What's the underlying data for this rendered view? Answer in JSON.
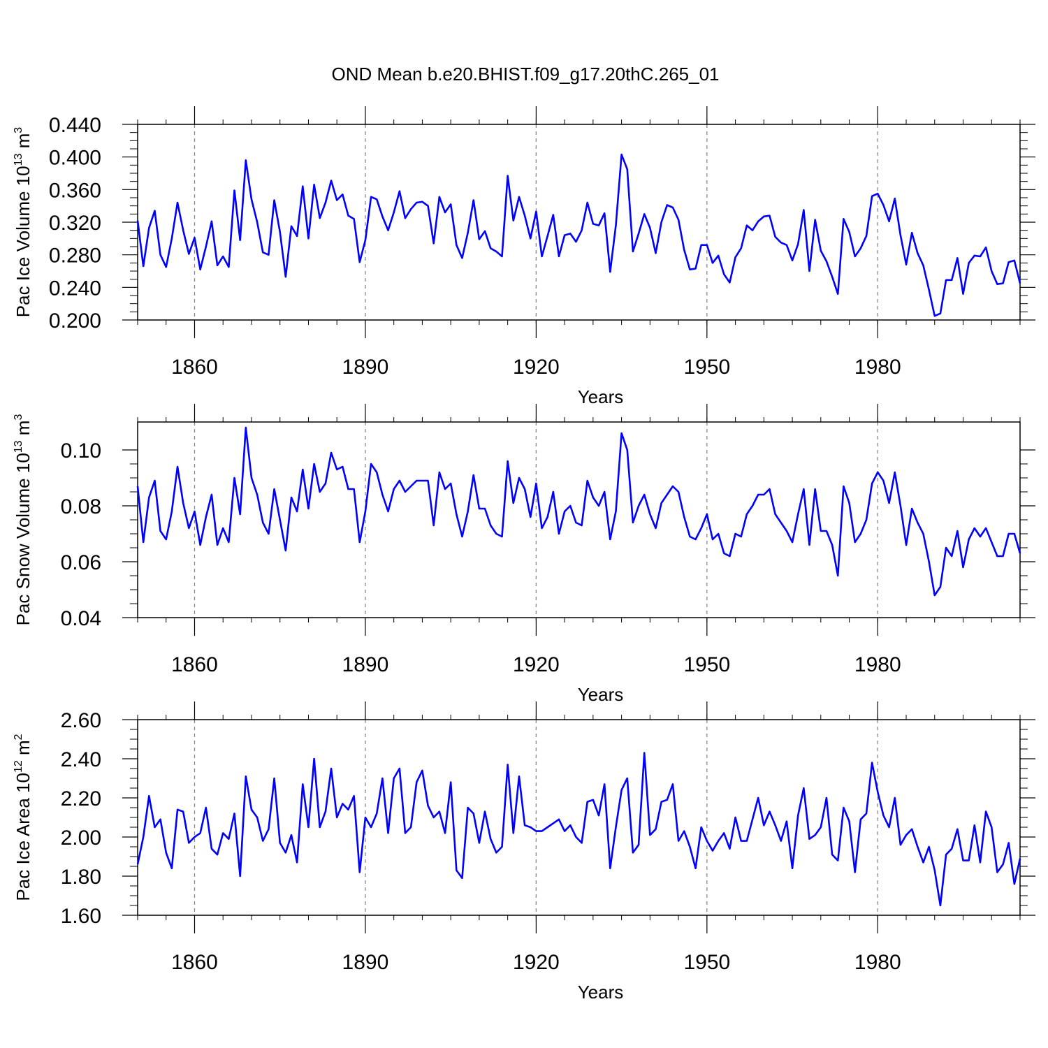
{
  "title": "OND Mean b.e20.BHIST.f09_g17.20thC.265_01",
  "chart_data": [
    {
      "type": "line",
      "name": "pac-ice-volume",
      "title": "OND Mean b.e20.BHIST.f09_g17.20thC.265_01",
      "xlabel": "Years",
      "ylabel": "Pac Ice Volume 10",
      "ylabel_exp": "13",
      "ylabel_unit": " m",
      "ylabel_unit_exp": "3",
      "xlim": [
        1850,
        2005
      ],
      "ylim": [
        0.2,
        0.44
      ],
      "xticks": [
        1860,
        1890,
        1920,
        1950,
        1980
      ],
      "yticks": [
        0.2,
        0.24,
        0.28,
        0.32,
        0.36,
        0.4,
        0.44
      ],
      "ytick_labels": [
        "0.200",
        "0.240",
        "0.280",
        "0.320",
        "0.360",
        "0.400",
        "0.440"
      ],
      "line_color": "#0000ff",
      "x_start": 1850,
      "values": [
        0.322,
        0.266,
        0.313,
        0.334,
        0.28,
        0.265,
        0.3,
        0.344,
        0.31,
        0.281,
        0.301,
        0.262,
        0.29,
        0.321,
        0.267,
        0.278,
        0.265,
        0.359,
        0.298,
        0.396,
        0.348,
        0.32,
        0.283,
        0.28,
        0.347,
        0.308,
        0.253,
        0.315,
        0.303,
        0.364,
        0.3,
        0.366,
        0.325,
        0.344,
        0.371,
        0.347,
        0.354,
        0.328,
        0.324,
        0.271,
        0.298,
        0.351,
        0.348,
        0.327,
        0.31,
        0.332,
        0.358,
        0.325,
        0.336,
        0.344,
        0.345,
        0.34,
        0.294,
        0.351,
        0.332,
        0.342,
        0.292,
        0.276,
        0.307,
        0.347,
        0.299,
        0.309,
        0.288,
        0.284,
        0.278,
        0.377,
        0.322,
        0.351,
        0.328,
        0.3,
        0.333,
        0.278,
        0.303,
        0.329,
        0.278,
        0.304,
        0.306,
        0.296,
        0.31,
        0.344,
        0.318,
        0.316,
        0.331,
        0.259,
        0.316,
        0.403,
        0.385,
        0.284,
        0.306,
        0.33,
        0.313,
        0.282,
        0.32,
        0.341,
        0.338,
        0.323,
        0.286,
        0.262,
        0.263,
        0.292,
        0.292,
        0.27,
        0.279,
        0.256,
        0.246,
        0.277,
        0.288,
        0.316,
        0.31,
        0.321,
        0.327,
        0.328,
        0.302,
        0.295,
        0.292,
        0.273,
        0.293,
        0.335,
        0.26,
        0.323,
        0.285,
        0.272,
        0.253,
        0.232,
        0.324,
        0.308,
        0.278,
        0.288,
        0.303,
        0.352,
        0.355,
        0.341,
        0.321,
        0.349,
        0.304,
        0.268,
        0.307,
        0.282,
        0.267,
        0.237,
        0.205,
        0.208,
        0.249,
        0.249,
        0.276,
        0.232,
        0.27,
        0.279,
        0.278,
        0.289,
        0.26,
        0.244,
        0.245,
        0.271,
        0.273,
        0.245
      ]
    },
    {
      "type": "line",
      "name": "pac-snow-volume",
      "xlabel": "Years",
      "ylabel": "Pac Snow Volume 10",
      "ylabel_exp": "13",
      "ylabel_unit": " m",
      "ylabel_unit_exp": "3",
      "xlim": [
        1850,
        2005
      ],
      "ylim": [
        0.04,
        0.11
      ],
      "xticks": [
        1860,
        1890,
        1920,
        1950,
        1980
      ],
      "yticks": [
        0.04,
        0.06,
        0.08,
        0.1
      ],
      "ytick_labels": [
        "0.04",
        "0.06",
        "0.08",
        "0.10"
      ],
      "line_color": "#0000ff",
      "x_start": 1850,
      "values": [
        0.087,
        0.067,
        0.083,
        0.089,
        0.071,
        0.068,
        0.078,
        0.094,
        0.081,
        0.072,
        0.078,
        0.066,
        0.076,
        0.084,
        0.066,
        0.072,
        0.067,
        0.09,
        0.077,
        0.108,
        0.09,
        0.084,
        0.074,
        0.07,
        0.086,
        0.075,
        0.064,
        0.083,
        0.078,
        0.093,
        0.079,
        0.095,
        0.085,
        0.088,
        0.099,
        0.093,
        0.094,
        0.086,
        0.086,
        0.067,
        0.078,
        0.095,
        0.092,
        0.084,
        0.078,
        0.086,
        0.089,
        0.085,
        0.087,
        0.089,
        0.089,
        0.089,
        0.073,
        0.092,
        0.086,
        0.088,
        0.077,
        0.069,
        0.078,
        0.091,
        0.079,
        0.079,
        0.073,
        0.07,
        0.069,
        0.096,
        0.081,
        0.09,
        0.086,
        0.076,
        0.088,
        0.072,
        0.076,
        0.085,
        0.07,
        0.078,
        0.08,
        0.074,
        0.073,
        0.089,
        0.083,
        0.08,
        0.085,
        0.068,
        0.078,
        0.106,
        0.1,
        0.074,
        0.08,
        0.084,
        0.077,
        0.072,
        0.081,
        0.084,
        0.087,
        0.085,
        0.076,
        0.069,
        0.068,
        0.072,
        0.077,
        0.068,
        0.07,
        0.063,
        0.062,
        0.07,
        0.069,
        0.077,
        0.08,
        0.084,
        0.084,
        0.086,
        0.077,
        0.074,
        0.071,
        0.067,
        0.077,
        0.086,
        0.066,
        0.086,
        0.071,
        0.071,
        0.066,
        0.055,
        0.087,
        0.081,
        0.067,
        0.07,
        0.075,
        0.088,
        0.092,
        0.089,
        0.081,
        0.092,
        0.08,
        0.066,
        0.079,
        0.074,
        0.07,
        0.06,
        0.048,
        0.051,
        0.065,
        0.062,
        0.071,
        0.058,
        0.068,
        0.072,
        0.069,
        0.072,
        0.067,
        0.062,
        0.062,
        0.07,
        0.07,
        0.063
      ]
    },
    {
      "type": "line",
      "name": "pac-ice-area",
      "xlabel": "Years",
      "ylabel": "Pac Ice Area 10",
      "ylabel_exp": "12",
      "ylabel_unit": " m",
      "ylabel_unit_exp": "2",
      "xlim": [
        1850,
        2005
      ],
      "ylim": [
        1.6,
        2.6
      ],
      "xticks": [
        1860,
        1890,
        1920,
        1950,
        1980
      ],
      "yticks": [
        1.6,
        1.8,
        2.0,
        2.2,
        2.4,
        2.6
      ],
      "ytick_labels": [
        "1.60",
        "1.80",
        "2.00",
        "2.20",
        "2.40",
        "2.60"
      ],
      "line_color": "#0000ff",
      "x_start": 1850,
      "values": [
        1.86,
        2.0,
        2.21,
        2.05,
        2.09,
        1.92,
        1.84,
        2.14,
        2.13,
        1.97,
        2.0,
        2.02,
        2.15,
        1.94,
        1.91,
        2.02,
        1.99,
        2.12,
        1.8,
        2.31,
        2.14,
        2.1,
        1.98,
        2.04,
        2.3,
        1.97,
        1.92,
        2.01,
        1.87,
        2.27,
        2.05,
        2.4,
        2.05,
        2.13,
        2.35,
        2.1,
        2.17,
        2.14,
        2.21,
        1.82,
        2.1,
        2.05,
        2.12,
        2.3,
        2.02,
        2.3,
        2.35,
        2.02,
        2.05,
        2.28,
        2.34,
        2.16,
        2.1,
        2.13,
        2.02,
        2.28,
        1.83,
        1.79,
        2.15,
        2.12,
        1.97,
        2.13,
        1.99,
        1.92,
        1.95,
        2.37,
        2.02,
        2.31,
        2.06,
        2.05,
        2.03,
        2.03,
        2.05,
        2.07,
        2.09,
        2.03,
        2.06,
        2.0,
        1.97,
        2.18,
        2.19,
        2.11,
        2.27,
        1.84,
        2.05,
        2.24,
        2.3,
        1.92,
        1.96,
        2.43,
        2.01,
        2.04,
        2.18,
        2.19,
        2.27,
        1.98,
        2.03,
        1.95,
        1.84,
        2.05,
        1.98,
        1.93,
        1.98,
        2.02,
        1.94,
        2.1,
        1.98,
        1.98,
        2.09,
        2.2,
        2.06,
        2.13,
        2.06,
        1.98,
        2.08,
        1.84,
        2.11,
        2.25,
        1.99,
        2.01,
        2.05,
        2.2,
        1.91,
        1.88,
        2.15,
        2.08,
        1.82,
        2.09,
        2.12,
        2.38,
        2.23,
        2.11,
        2.05,
        2.2,
        1.96,
        2.01,
        2.04,
        1.95,
        1.87,
        1.95,
        1.83,
        1.65,
        1.91,
        1.94,
        2.04,
        1.88,
        1.88,
        2.06,
        1.87,
        2.13,
        2.05,
        1.82,
        1.86,
        1.97,
        1.76,
        1.89
      ]
    }
  ]
}
